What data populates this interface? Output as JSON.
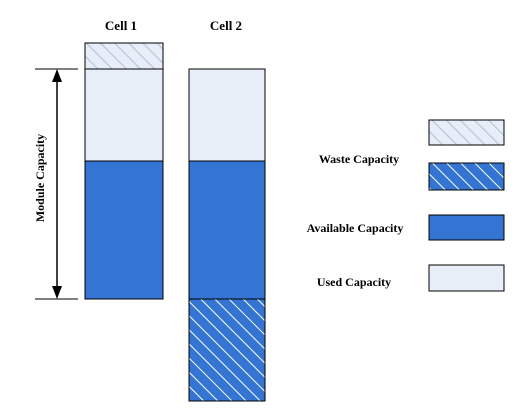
{
  "diagram": {
    "cells": [
      {
        "label": "Cell 1"
      },
      {
        "label": "Cell 2"
      }
    ],
    "axis_label": "Module Capacity",
    "legend": [
      {
        "label": "Waste Capacity",
        "swatches": [
          "light-hatch",
          "blue-hatch"
        ]
      },
      {
        "label": "Available Capacity",
        "swatches": [
          "solid-blue"
        ]
      },
      {
        "label": "Used Capacity",
        "swatches": [
          "light"
        ]
      }
    ]
  },
  "colors": {
    "used": "#e8eef8",
    "available": "#3474d2",
    "waste_light": "#e8eef8",
    "waste_dark": "#3474d2",
    "hatch_light_line": "#b4c2d8",
    "hatch_dark_line": "#ffffff",
    "outline": "#000000"
  }
}
